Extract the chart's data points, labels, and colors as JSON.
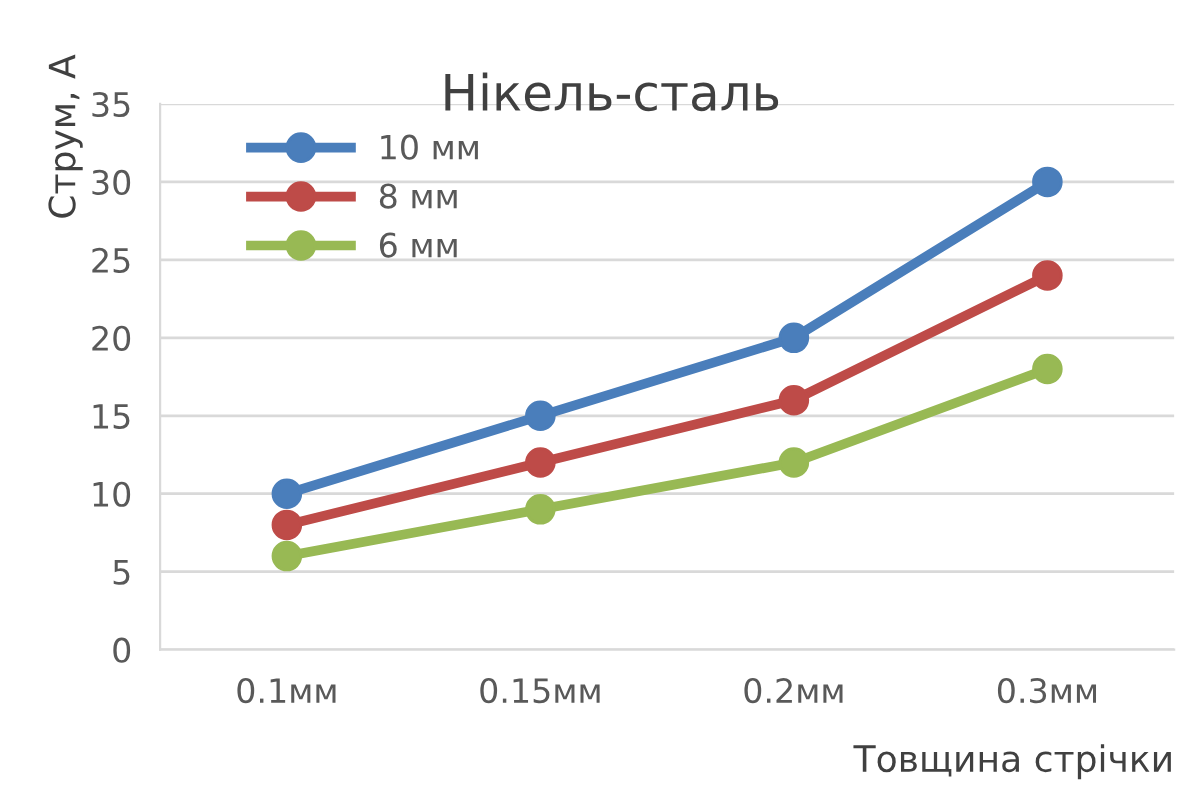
{
  "chart_data": {
    "type": "line",
    "title": "Нікель-сталь",
    "xlabel": "Товщина стрічки",
    "ylabel": "Струм, А",
    "categories": [
      "0.1мм",
      "0.15мм",
      "0.2мм",
      "0.3мм"
    ],
    "series": [
      {
        "name": "10 мм",
        "color": "#4a7ebb",
        "values": [
          10,
          15,
          20,
          30
        ]
      },
      {
        "name": "8 мм",
        "color": "#be4b48",
        "values": [
          8,
          12,
          16,
          24
        ]
      },
      {
        "name": "6 мм",
        "color": "#98b954",
        "values": [
          6,
          9,
          12,
          18
        ]
      }
    ],
    "ylim": [
      0,
      35
    ],
    "yticks": [
      0,
      5,
      10,
      15,
      20,
      25,
      30,
      35
    ],
    "grid": "y",
    "legend": "top left",
    "marker": "circle",
    "line_style": "solid"
  }
}
